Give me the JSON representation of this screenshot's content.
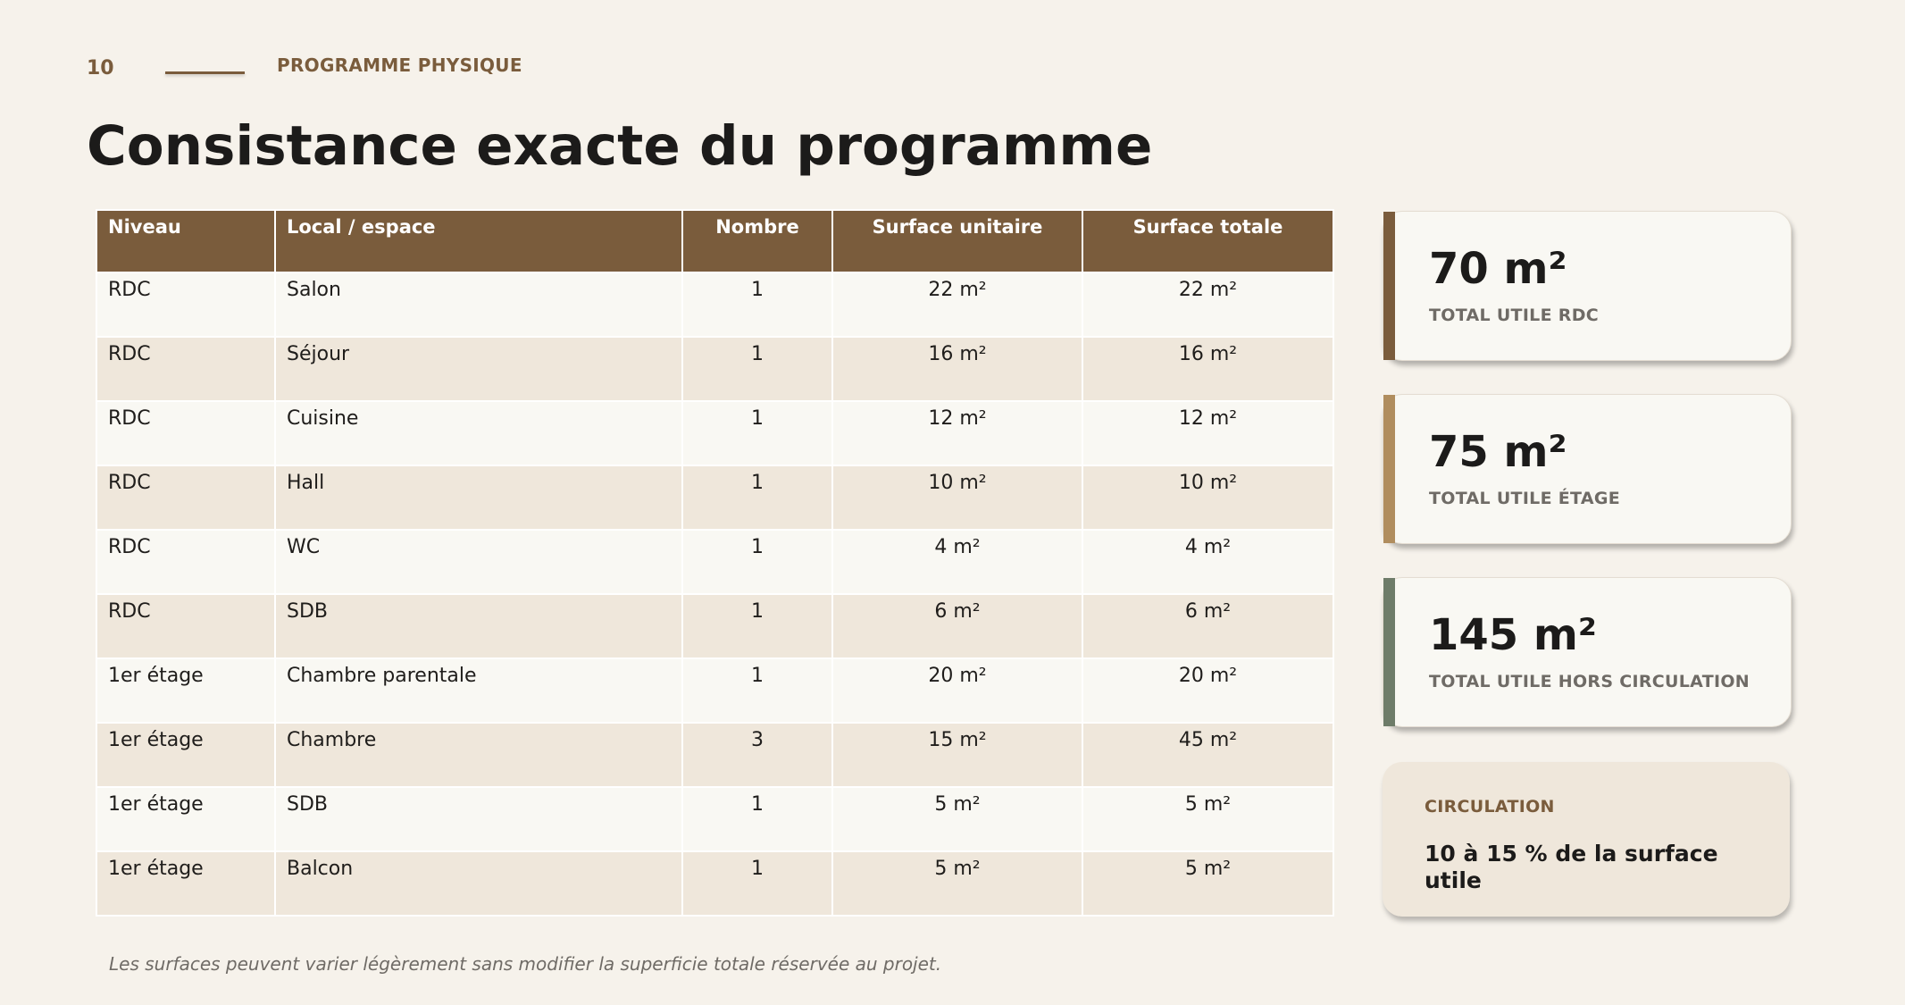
{
  "header": {
    "page_number": "10",
    "section": "PROGRAMME PHYSIQUE",
    "title": "Consistance exacte du programme"
  },
  "table": {
    "columns": [
      "Niveau",
      "Local / espace",
      "Nombre",
      "Surface unitaire",
      "Surface totale"
    ],
    "rows": [
      [
        "RDC",
        "Salon",
        "1",
        "22 m²",
        "22 m²"
      ],
      [
        "RDC",
        "Séjour",
        "1",
        "16 m²",
        "16 m²"
      ],
      [
        "RDC",
        "Cuisine",
        "1",
        "12 m²",
        "12 m²"
      ],
      [
        "RDC",
        "Hall",
        "1",
        "10 m²",
        "10 m²"
      ],
      [
        "RDC",
        "WC",
        "1",
        "4 m²",
        "4 m²"
      ],
      [
        "RDC",
        "SDB",
        "1",
        "6 m²",
        "6 m²"
      ],
      [
        "1er étage",
        "Chambre parentale",
        "1",
        "20 m²",
        "20 m²"
      ],
      [
        "1er étage",
        "Chambre",
        "3",
        "15 m²",
        "45 m²"
      ],
      [
        "1er étage",
        "SDB",
        "1",
        "5 m²",
        "5 m²"
      ],
      [
        "1er étage",
        "Balcon",
        "1",
        "5 m²",
        "5 m²"
      ]
    ]
  },
  "stats": [
    {
      "value": "70 m²",
      "label": "TOTAL UTILE RDC",
      "accent": "#7a5c3c"
    },
    {
      "value": "75 m²",
      "label": "TOTAL UTILE ÉTAGE",
      "accent": "#b08d5e"
    },
    {
      "value": "145 m²",
      "label": "TOTAL UTILE HORS CIRCULATION",
      "accent": "#6e7c69"
    }
  ],
  "circulation": {
    "label": "CIRCULATION",
    "value": "10 à 15 % de la surface utile"
  },
  "footnote": "Les surfaces peuvent varier légèrement sans modifier la superficie totale réservée au projet."
}
